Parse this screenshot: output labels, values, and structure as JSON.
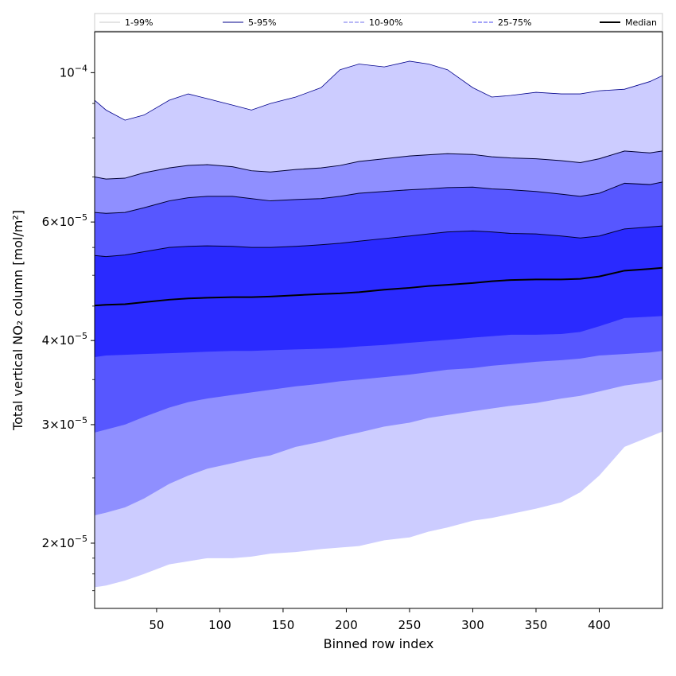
{
  "chart_data": {
    "type": "area",
    "title": "",
    "xlabel": "Binned row index",
    "ylabel": "Total vertical NO₂ column [mol/m²]",
    "yscale": "log",
    "xlim": [
      1,
      450
    ],
    "ylim": [
      1.6e-05,
      0.000115
    ],
    "xticks": [
      50,
      100,
      150,
      200,
      250,
      300,
      350,
      400
    ],
    "xtick_labels": [
      "50",
      "100",
      "150",
      "200",
      "250",
      "300",
      "350",
      "400"
    ],
    "yticks": [
      {
        "value": 2e-05,
        "mantissa": "2",
        "exp": "−5"
      },
      {
        "value": 3e-05,
        "mantissa": "3",
        "exp": "−5"
      },
      {
        "value": 4e-05,
        "mantissa": "4",
        "exp": "−5"
      },
      {
        "value": 6e-05,
        "mantissa": "6",
        "exp": "−5"
      },
      {
        "value": 0.0001,
        "mantissa": "",
        "exp": "−4"
      }
    ],
    "x": [
      1,
      10,
      25,
      40,
      60,
      75,
      90,
      110,
      125,
      140,
      160,
      180,
      195,
      210,
      230,
      250,
      265,
      280,
      300,
      315,
      330,
      350,
      370,
      385,
      400,
      420,
      440,
      450
    ],
    "bands": [
      {
        "name": "1-99%",
        "color": "#ccccff",
        "line_color": "#c8c8c8",
        "lower": [
          1.72e-05,
          1.73e-05,
          1.76e-05,
          1.8e-05,
          1.86e-05,
          1.88e-05,
          1.9e-05,
          1.9e-05,
          1.91e-05,
          1.93e-05,
          1.94e-05,
          1.96e-05,
          1.97e-05,
          1.98e-05,
          2.02e-05,
          2.04e-05,
          2.08e-05,
          2.11e-05,
          2.16e-05,
          2.18e-05,
          2.21e-05,
          2.25e-05,
          2.3e-05,
          2.38e-05,
          2.52e-05,
          2.78e-05,
          2.88e-05,
          2.93e-05
        ],
        "upper": [
          9.1e-05,
          8.8e-05,
          8.5e-05,
          8.65e-05,
          9.1e-05,
          9.3e-05,
          9.15e-05,
          8.95e-05,
          8.8e-05,
          9e-05,
          9.2e-05,
          9.5e-05,
          0.000101,
          0.000103,
          0.000102,
          0.000104,
          0.000103,
          0.000101,
          9.5e-05,
          9.2e-05,
          9.25e-05,
          9.35e-05,
          9.3e-05,
          9.3e-05,
          9.4e-05,
          9.45e-05,
          9.7e-05,
          9.9e-05
        ]
      },
      {
        "name": "5-95%",
        "color": "#8f8fff",
        "line_color": "#00008b",
        "lower": [
          2.2e-05,
          2.22e-05,
          2.26e-05,
          2.33e-05,
          2.45e-05,
          2.52e-05,
          2.58e-05,
          2.63e-05,
          2.67e-05,
          2.7e-05,
          2.78e-05,
          2.83e-05,
          2.88e-05,
          2.92e-05,
          2.98e-05,
          3.02e-05,
          3.07e-05,
          3.1e-05,
          3.14e-05,
          3.17e-05,
          3.2e-05,
          3.23e-05,
          3.28e-05,
          3.31e-05,
          3.36e-05,
          3.43e-05,
          3.47e-05,
          3.5e-05
        ]
      },
      {
        "name": "10-90%",
        "color": "#5757ff",
        "line_color": "#7070ee",
        "lower": [
          2.92e-05,
          2.95e-05,
          3e-05,
          3.08e-05,
          3.18e-05,
          3.24e-05,
          3.28e-05,
          3.32e-05,
          3.35e-05,
          3.38e-05,
          3.42e-05,
          3.45e-05,
          3.48e-05,
          3.5e-05,
          3.53e-05,
          3.56e-05,
          3.59e-05,
          3.62e-05,
          3.64e-05,
          3.67e-05,
          3.69e-05,
          3.72e-05,
          3.74e-05,
          3.76e-05,
          3.8e-05,
          3.82e-05,
          3.84e-05,
          3.86e-05
        ]
      },
      {
        "name": "25-75%",
        "color": "#2a2aff",
        "line_color": "#4a4af0",
        "lower": [
          3.78e-05,
          3.8e-05,
          3.81e-05,
          3.82e-05,
          3.83e-05,
          3.84e-05,
          3.85e-05,
          3.86e-05,
          3.86e-05,
          3.87e-05,
          3.88e-05,
          3.89e-05,
          3.9e-05,
          3.92e-05,
          3.94e-05,
          3.97e-05,
          3.99e-05,
          4.01e-05,
          4.04e-05,
          4.06e-05,
          4.08e-05,
          4.08e-05,
          4.09e-05,
          4.12e-05,
          4.2e-05,
          4.32e-05,
          4.34e-05,
          4.35e-05
        ]
      }
    ],
    "upper_lines": [
      {
        "name": "95%",
        "values": [
          7e-05,
          6.95e-05,
          6.97e-05,
          7.1e-05,
          7.22e-05,
          7.28e-05,
          7.3e-05,
          7.25e-05,
          7.15e-05,
          7.12e-05,
          7.18e-05,
          7.22e-05,
          7.28e-05,
          7.38e-05,
          7.45e-05,
          7.52e-05,
          7.55e-05,
          7.58e-05,
          7.56e-05,
          7.5e-05,
          7.47e-05,
          7.45e-05,
          7.4e-05,
          7.35e-05,
          7.45e-05,
          7.65e-05,
          7.6e-05,
          7.65e-05
        ]
      },
      {
        "name": "90%",
        "values": [
          6.2e-05,
          6.18e-05,
          6.2e-05,
          6.3e-05,
          6.45e-05,
          6.52e-05,
          6.55e-05,
          6.55e-05,
          6.5e-05,
          6.45e-05,
          6.48e-05,
          6.5e-05,
          6.55e-05,
          6.62e-05,
          6.66e-05,
          6.7e-05,
          6.72e-05,
          6.75e-05,
          6.76e-05,
          6.72e-05,
          6.7e-05,
          6.66e-05,
          6.6e-05,
          6.55e-05,
          6.62e-05,
          6.85e-05,
          6.82e-05,
          6.88e-05
        ]
      },
      {
        "name": "75%",
        "values": [
          5.35e-05,
          5.33e-05,
          5.36e-05,
          5.42e-05,
          5.5e-05,
          5.52e-05,
          5.53e-05,
          5.52e-05,
          5.5e-05,
          5.5e-05,
          5.52e-05,
          5.55e-05,
          5.58e-05,
          5.62e-05,
          5.67e-05,
          5.72e-05,
          5.76e-05,
          5.8e-05,
          5.82e-05,
          5.8e-05,
          5.77e-05,
          5.76e-05,
          5.72e-05,
          5.68e-05,
          5.72e-05,
          5.86e-05,
          5.9e-05,
          5.92e-05
        ]
      }
    ],
    "median": {
      "name": "Median",
      "color": "#000000",
      "values": [
        4.51e-05,
        4.52e-05,
        4.53e-05,
        4.56e-05,
        4.6e-05,
        4.62e-05,
        4.63e-05,
        4.64e-05,
        4.64e-05,
        4.65e-05,
        4.67e-05,
        4.69e-05,
        4.7e-05,
        4.72e-05,
        4.76e-05,
        4.79e-05,
        4.82e-05,
        4.84e-05,
        4.87e-05,
        4.9e-05,
        4.92e-05,
        4.93e-05,
        4.93e-05,
        4.94e-05,
        4.98e-05,
        5.08e-05,
        5.11e-05,
        5.13e-05
      ]
    },
    "legend": {
      "placement": "top",
      "entries": [
        {
          "label": "1-99%",
          "color": "#c8c8c8",
          "style": "solid-thin"
        },
        {
          "label": "5-95%",
          "color": "#00008b",
          "style": "solid-thin"
        },
        {
          "label": "10-90%",
          "color": "#7070ee",
          "style": "dashed"
        },
        {
          "label": "25-75%",
          "color": "#4a4af0",
          "style": "dashed"
        },
        {
          "label": "Median",
          "color": "#000000",
          "style": "solid-thick"
        }
      ]
    }
  }
}
